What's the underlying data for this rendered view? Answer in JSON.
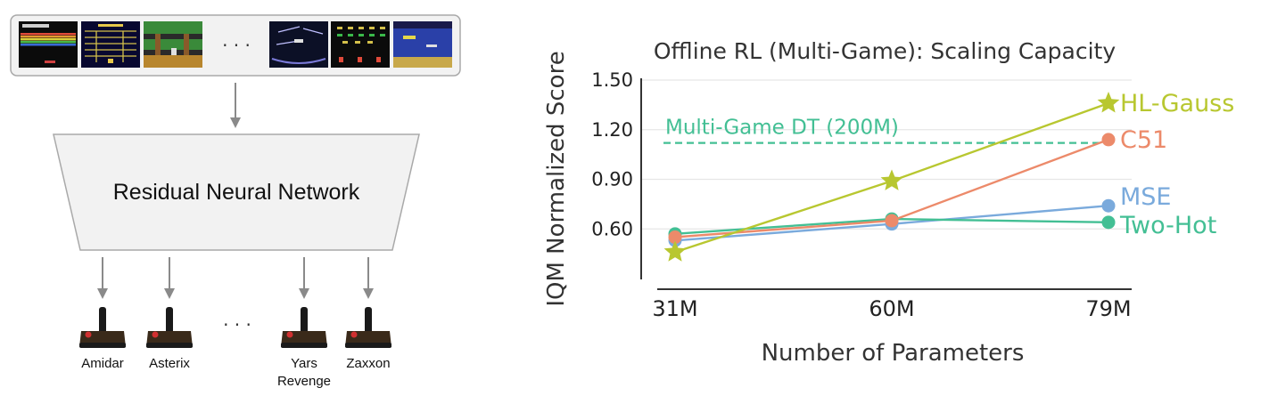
{
  "diagram": {
    "network_label": "Residual Neural Network",
    "ellipsis": "· · ·",
    "games": [
      "Amidar",
      "Asterix",
      "Yars Revenge",
      "Zaxxon"
    ],
    "colors": {
      "box_fill": "#f2f2f2",
      "box_stroke": "#a9a9a9",
      "arrow": "#8a8a8a"
    }
  },
  "chart_data": {
    "type": "line",
    "title": "Offline RL (Multi-Game): Scaling Capacity",
    "xlabel": "Number of Parameters",
    "ylabel": "IQM Normalized Score",
    "categories": [
      "31M",
      "60M",
      "79M"
    ],
    "yticks": [
      "0.60",
      "0.90",
      "1.20",
      "1.50"
    ],
    "ylim": [
      0.3,
      1.5
    ],
    "grid": true,
    "series": [
      {
        "name": "HL-Gauss",
        "values": [
          0.46,
          0.89,
          1.36
        ],
        "color": "#b8c730",
        "marker": "star"
      },
      {
        "name": "C51",
        "values": [
          0.55,
          0.65,
          1.14
        ],
        "color": "#ec8a6a",
        "marker": "circle"
      },
      {
        "name": "MSE",
        "values": [
          0.53,
          0.63,
          0.74
        ],
        "color": "#7aaadc",
        "marker": "circle"
      },
      {
        "name": "Two-Hot",
        "values": [
          0.57,
          0.66,
          0.64
        ],
        "color": "#43bf94",
        "marker": "circle"
      }
    ],
    "reference_line": {
      "label": "Multi-Game DT (200M)",
      "value": 1.12,
      "color": "#43bf94"
    }
  }
}
